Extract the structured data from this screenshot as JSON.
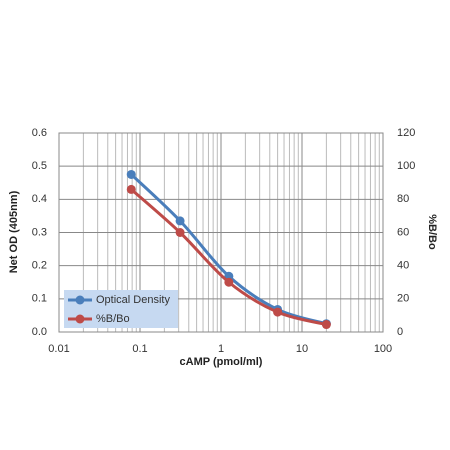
{
  "chart_data": {
    "type": "line",
    "xlabel": "cAMP (pmol/ml)",
    "ylabel": "Net OD (405nm)",
    "y2label": "%B/Bo",
    "x": [
      0.078,
      0.3125,
      1.25,
      5,
      20
    ],
    "series": [
      {
        "name": "Optical Density",
        "color": "#4a7ebb",
        "values": [
          0.475,
          0.335,
          0.168,
          0.068,
          0.025
        ]
      },
      {
        "name": "%B/Bo",
        "color": "#be4b48",
        "axis": "y2",
        "values": [
          86,
          60,
          30,
          12,
          4.5
        ]
      }
    ],
    "xlog": true,
    "xlim": [
      0.01,
      100
    ],
    "xticks": [
      0.01,
      0.1,
      1,
      10,
      100
    ],
    "ylim": [
      0,
      0.6
    ],
    "yticks": [
      {
        "value": 0,
        "label": "0.0"
      },
      0.1,
      0.2,
      0.3,
      0.4,
      0.5,
      0.6
    ],
    "y2lim": [
      0,
      120
    ],
    "y2ticks": [
      0,
      20,
      40,
      60,
      80,
      100,
      120
    ],
    "grid": true,
    "minor_grid": true,
    "legend": "lower left",
    "legend_fill": "#c6d9f1"
  }
}
